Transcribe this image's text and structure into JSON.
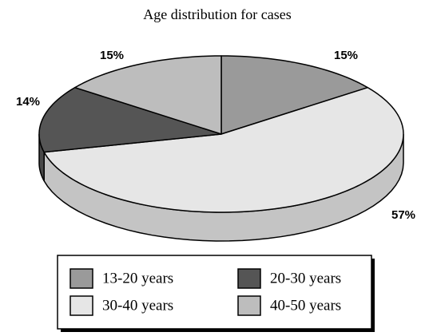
{
  "chart_data": {
    "type": "pie3d",
    "title": "Age distribution for cases",
    "categories": [
      "13-20 years",
      "20-30 years",
      "30-40 years",
      "40-50 years"
    ],
    "values": [
      15,
      14,
      57,
      15
    ],
    "value_labels": [
      "15%",
      "14%",
      "57%",
      "15%"
    ],
    "colors": [
      "#9a9a9a",
      "#555555",
      "#e6e6e6",
      "#bdbdbd"
    ]
  }
}
